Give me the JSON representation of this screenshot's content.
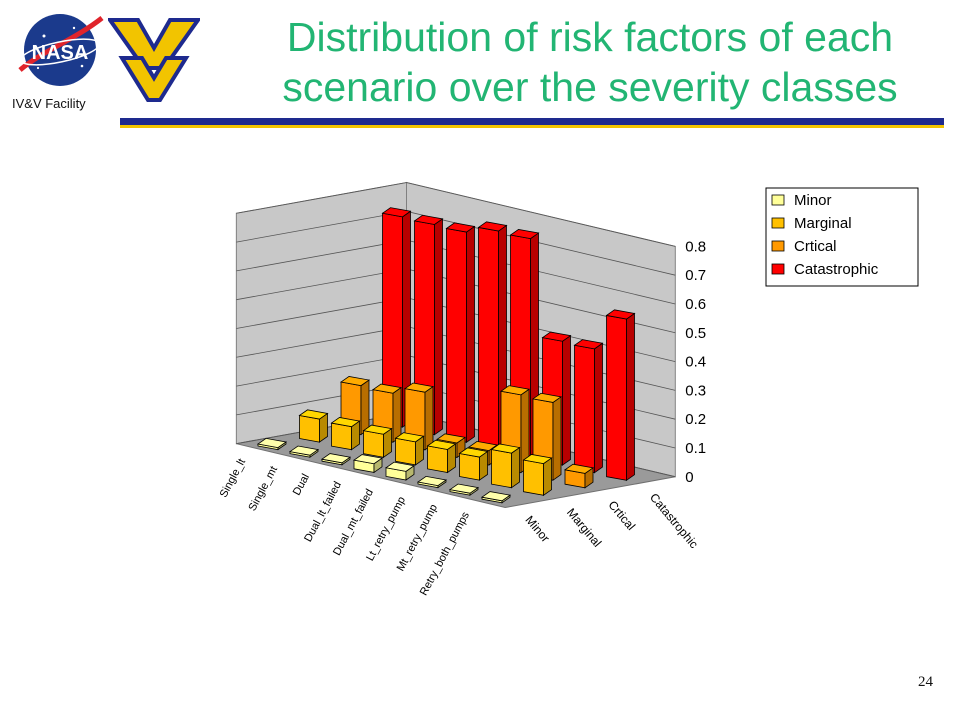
{
  "header": {
    "title_line1": "Distribution of risk factors of each",
    "title_line2": "scenario over the severity classes",
    "facility_label": "IV&V Facility",
    "logos": [
      "nasa-logo",
      "wvu-logo"
    ],
    "accent_colors": {
      "rule_blue": "#1e2a8e",
      "rule_yellow": "#f2c400",
      "title_green": "#22b573"
    }
  },
  "page_number": "24",
  "chart_data": {
    "type": "bar",
    "style": "3d-clustered",
    "title": "",
    "categories": [
      "Single_lt",
      "Single_mt",
      "Dual",
      "Dual_lt_failed",
      "Dual_mt_failed",
      "Lt_retry_pump",
      "Mt_retry_pump",
      "Retry_both_pumps"
    ],
    "series": [
      {
        "name": "Minor",
        "color": "#ffff99",
        "values": [
          0.0,
          0.0,
          0.0,
          0.03,
          0.03,
          0.0,
          0.0,
          0.0
        ]
      },
      {
        "name": "Marginal",
        "color": "#ffc000",
        "values": [
          0.08,
          0.08,
          0.08,
          0.08,
          0.08,
          0.08,
          0.12,
          0.11
        ]
      },
      {
        "name": "Crtical",
        "color": "#ff9900",
        "values": [
          0.17,
          0.17,
          0.2,
          0.05,
          0.05,
          0.27,
          0.27,
          0.05
        ]
      },
      {
        "name": "Catastrophic",
        "color": "#ff0000",
        "values": [
          0.73,
          0.73,
          0.73,
          0.76,
          0.76,
          0.43,
          0.43,
          0.56
        ]
      }
    ],
    "depth_labels": [
      "Minor",
      "Marginal",
      "Crtical",
      "Catastrophic"
    ],
    "y_ticks": [
      "0",
      "0.1",
      "0.2",
      "0.3",
      "0.4",
      "0.5",
      "0.6",
      "0.7",
      "0.8"
    ],
    "ylim": [
      0,
      0.8
    ],
    "grid": true,
    "legend_position": "top-right"
  }
}
